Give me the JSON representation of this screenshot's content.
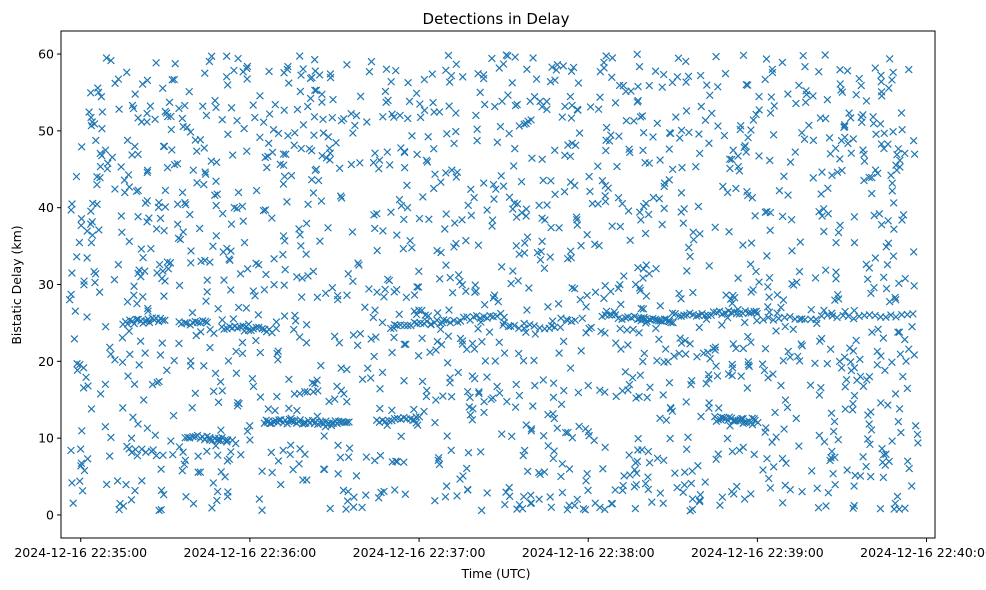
{
  "chart_data": {
    "type": "scatter",
    "title": "Detections in Delay",
    "xlabel": "Time (UTC)",
    "ylabel": "Bistatic Delay (km)",
    "x_is_time": true,
    "xlim": [
      "2024-12-16 22:34:53",
      "2024-12-16 22:40:03"
    ],
    "ylim": [
      -3,
      63
    ],
    "x_ticks": [
      "2024-12-16 22:35:00",
      "2024-12-16 22:36:00",
      "2024-12-16 22:37:00",
      "2024-12-16 22:38:00",
      "2024-12-16 22:39:00",
      "2024-12-16 22:40:00"
    ],
    "y_ticks": [
      0,
      10,
      20,
      30,
      40,
      50,
      60
    ],
    "grid": false,
    "marker": "x",
    "color": "#1f77b4",
    "time_range": [
      "2024-12-16 22:34:56",
      "2024-12-16 22:39:57"
    ],
    "clusters": [
      {
        "start": "2024-12-16 22:35:15",
        "end": "2024-12-16 22:35:30",
        "y_start": 25,
        "y_end": 25.5,
        "count": 20
      },
      {
        "start": "2024-12-16 22:35:35",
        "end": "2024-12-16 22:35:45",
        "y_start": 25,
        "y_end": 25,
        "count": 12
      },
      {
        "start": "2024-12-16 22:35:50",
        "end": "2024-12-16 22:36:08",
        "y_start": 24.5,
        "y_end": 24,
        "count": 20
      },
      {
        "start": "2024-12-16 22:35:37",
        "end": "2024-12-16 22:35:52",
        "y_start": 10.2,
        "y_end": 9.8,
        "count": 18
      },
      {
        "start": "2024-12-16 22:36:05",
        "end": "2024-12-16 22:36:35",
        "y_start": 12.2,
        "y_end": 12,
        "count": 45
      },
      {
        "start": "2024-12-16 22:36:45",
        "end": "2024-12-16 22:37:00",
        "y_start": 12.2,
        "y_end": 12.5,
        "count": 15
      },
      {
        "start": "2024-12-16 22:36:50",
        "end": "2024-12-16 22:37:30",
        "y_start": 24.5,
        "y_end": 26,
        "count": 35
      },
      {
        "start": "2024-12-16 22:37:30",
        "end": "2024-12-16 22:37:50",
        "y_start": 24.5,
        "y_end": 24.5,
        "count": 12
      },
      {
        "start": "2024-12-16 22:38:05",
        "end": "2024-12-16 22:38:20",
        "y_start": 26,
        "y_end": 25.5,
        "count": 14
      },
      {
        "start": "2024-12-16 22:38:18",
        "end": "2024-12-16 22:38:30",
        "y_start": 25.5,
        "y_end": 25.2,
        "count": 18
      },
      {
        "start": "2024-12-16 22:38:30",
        "end": "2024-12-16 22:39:00",
        "y_start": 26,
        "y_end": 26.5,
        "count": 30
      },
      {
        "start": "2024-12-16 22:38:45",
        "end": "2024-12-16 22:39:00",
        "y_start": 12.5,
        "y_end": 12.3,
        "count": 25
      },
      {
        "start": "2024-12-16 22:39:00",
        "end": "2024-12-16 22:39:55",
        "y_start": 25.5,
        "y_end": 26,
        "count": 30
      }
    ],
    "background_noise": {
      "y_range": [
        0.5,
        60
      ],
      "count": 1700
    }
  }
}
